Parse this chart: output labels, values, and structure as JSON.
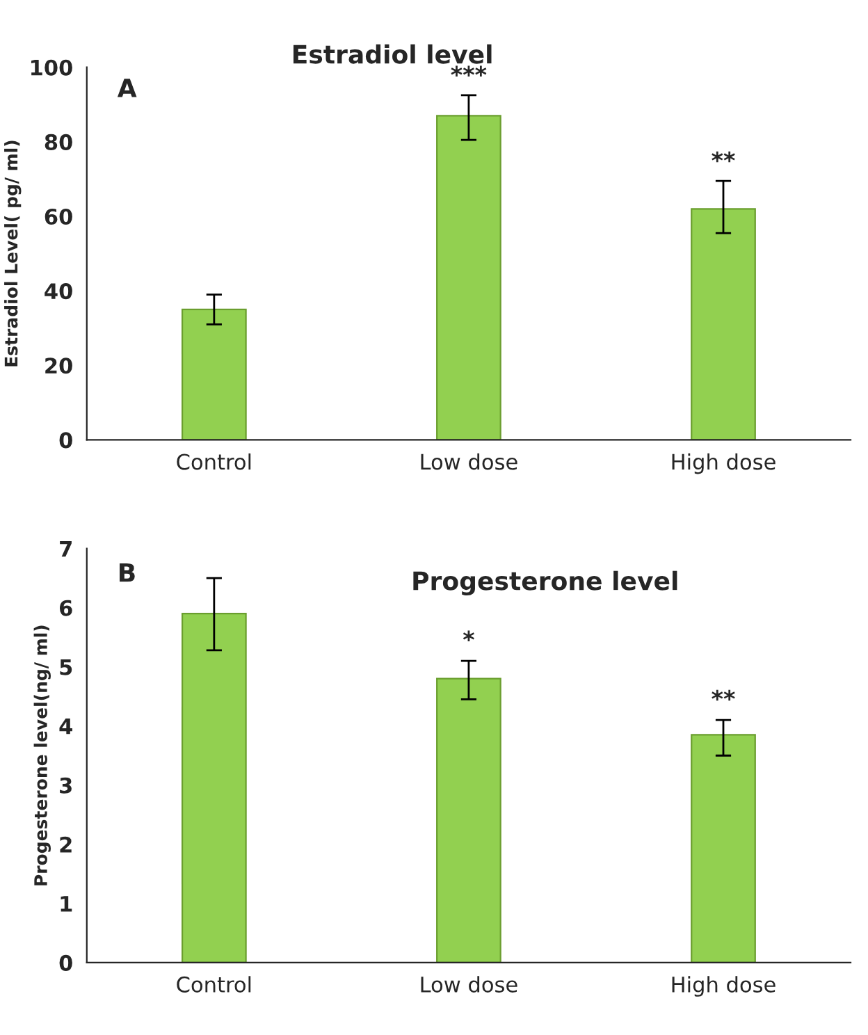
{
  "chart_data": [
    {
      "type": "bar",
      "title": "Estradiol level",
      "ylabel": "Estradiol Level( pg/ ml)",
      "categories": [
        "Control",
        "Low dose",
        "High dose"
      ],
      "series": [
        {
          "color": "#92d050",
          "values": [
            35,
            87,
            62
          ],
          "errors": [
            [
              31,
              39
            ],
            [
              80.5,
              92.5
            ],
            [
              55.5,
              69.5
            ]
          ]
        }
      ],
      "ylim": [
        0,
        100
      ],
      "yticks": [
        0,
        20,
        40,
        60,
        80,
        100
      ],
      "grid": false,
      "legend": false,
      "annotations": [
        "A",
        {
          "text": "***",
          "x": "Low dose",
          "y": 92.5
        },
        {
          "text": "**",
          "x": "High dose",
          "y": 69.5
        }
      ]
    },
    {
      "type": "bar",
      "title": "Progesterone level",
      "ylabel": "Progesterone level(ng/ ml)",
      "categories": [
        "Control",
        "Low dose",
        "High dose"
      ],
      "series": [
        {
          "color": "#92d050",
          "values": [
            5.9,
            4.8,
            3.85
          ],
          "errors": [
            [
              5.28,
              6.5
            ],
            [
              4.45,
              5.1
            ],
            [
              3.5,
              4.1
            ]
          ]
        }
      ],
      "ylim": [
        0,
        7
      ],
      "yticks": [
        0,
        1,
        2,
        3,
        4,
        5,
        6,
        7
      ],
      "grid": false,
      "legend": false,
      "annotations": [
        "B",
        {
          "text": "*",
          "x": "Low dose",
          "y": 5.1
        },
        {
          "text": "**",
          "x": "High dose",
          "y": 4.1
        }
      ]
    }
  ]
}
